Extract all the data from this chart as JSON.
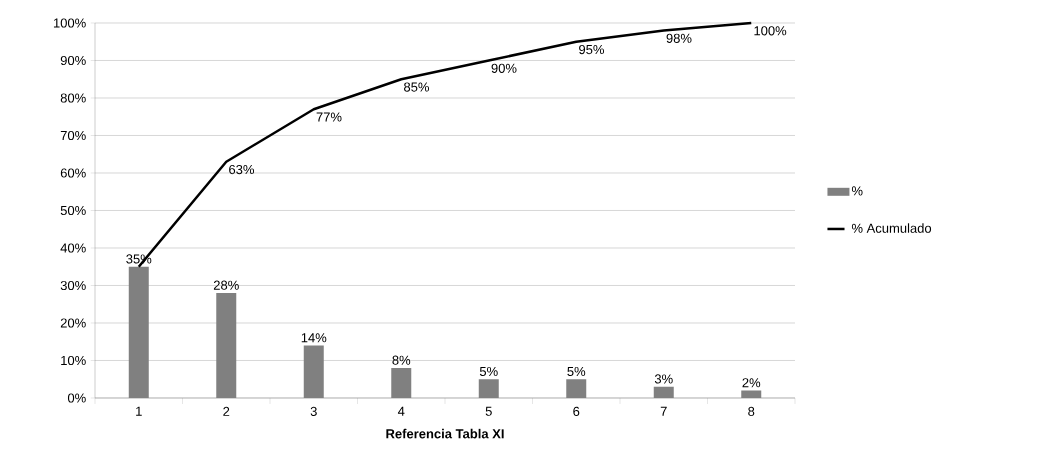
{
  "chart_data": {
    "type": "bar",
    "xlabel": "Referencia Tabla XI",
    "categories": [
      "1",
      "2",
      "3",
      "4",
      "5",
      "6",
      "7",
      "8"
    ],
    "series": [
      {
        "name": "%",
        "color": "#808080",
        "values": [
          35,
          28,
          14,
          8,
          5,
          5,
          3,
          2
        ],
        "value_labels": [
          "35%",
          "28%",
          "14%",
          "8%",
          "5%",
          "5%",
          "3%",
          "2%"
        ]
      },
      {
        "name": "% Acumulado",
        "type": "line",
        "color": "#000000",
        "values": [
          35,
          63,
          77,
          85,
          90,
          95,
          98,
          100
        ],
        "value_labels": [
          null,
          "63%",
          "77%",
          "85%",
          "90%",
          "95%",
          "98%",
          "100%"
        ]
      }
    ],
    "ylim": [
      0,
      100
    ],
    "yticks": [
      {
        "value": 0,
        "label": "0%"
      },
      {
        "value": 10,
        "label": "10%"
      },
      {
        "value": 20,
        "label": "20%"
      },
      {
        "value": 30,
        "label": "30%"
      },
      {
        "value": 40,
        "label": "40%"
      },
      {
        "value": 50,
        "label": "50%"
      },
      {
        "value": 60,
        "label": "60%"
      },
      {
        "value": 70,
        "label": "70%"
      },
      {
        "value": 80,
        "label": "80%"
      },
      {
        "value": 90,
        "label": "90%"
      },
      {
        "value": 100,
        "label": "100%"
      }
    ],
    "grid": "y",
    "legend": "right"
  }
}
